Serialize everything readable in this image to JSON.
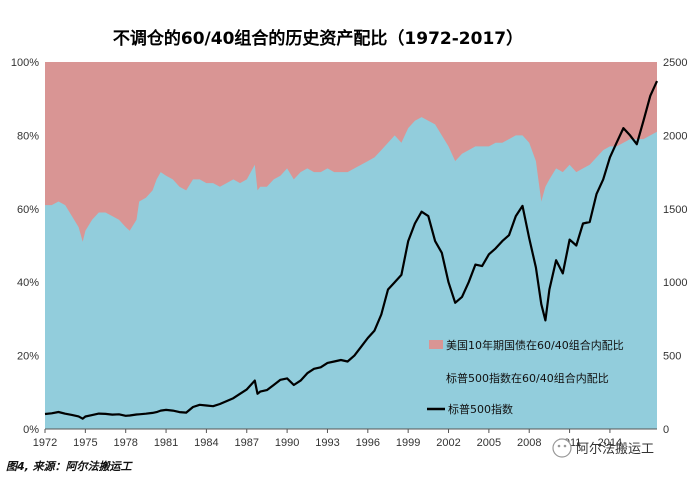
{
  "chart_data": {
    "type": "area",
    "title": "不调仓的60/40组合的历史资产配比（1972-2017）",
    "x_ticks": [
      "1972",
      "1975",
      "1978",
      "1981",
      "1984",
      "1987",
      "1990",
      "1993",
      "1996",
      "1999",
      "2002",
      "2005",
      "2008",
      "2011",
      "2014"
    ],
    "xlim": [
      1972,
      2017.5
    ],
    "y_left": {
      "ticks": [
        "0%",
        "20%",
        "40%",
        "60%",
        "80%",
        "100%"
      ],
      "ylim": [
        0,
        100
      ]
    },
    "y_right": {
      "ticks": [
        "0",
        "500",
        "1000",
        "1500",
        "2000",
        "2500"
      ],
      "ylim": [
        0,
        2500
      ]
    },
    "grid": false,
    "legend_position": "bottom-right",
    "colors": {
      "bond": "#d99594",
      "equity": "#92cddc",
      "sp500": "#000000"
    },
    "series": [
      {
        "name": "美国10年期国债在60/40组合内配比",
        "kind": "area-top",
        "note_values": "remainder to 100%"
      },
      {
        "name": "标普500指数在60/40组合内配比",
        "kind": "area",
        "axis": "left",
        "x": [
          1972,
          1972.5,
          1973,
          1973.5,
          1974,
          1974.5,
          1974.8,
          1975,
          1975.5,
          1976,
          1976.5,
          1977,
          1977.5,
          1978,
          1978.3,
          1978.8,
          1979,
          1979.5,
          1980,
          1980.3,
          1980.6,
          1981,
          1981.5,
          1982,
          1982.5,
          1983,
          1983.5,
          1984,
          1984.5,
          1985,
          1985.5,
          1986,
          1986.5,
          1987,
          1987.6,
          1987.8,
          1988,
          1988.5,
          1989,
          1989.5,
          1990,
          1990.5,
          1991,
          1991.5,
          1992,
          1992.5,
          1993,
          1993.5,
          1994,
          1994.5,
          1995,
          1995.5,
          1996,
          1996.5,
          1997,
          1997.5,
          1998,
          1998.5,
          1999,
          1999.5,
          2000,
          2000.5,
          2001,
          2001.5,
          2002,
          2002.5,
          2003,
          2003.5,
          2004,
          2004.5,
          2005,
          2005.5,
          2006,
          2006.5,
          2007,
          2007.5,
          2008,
          2008.5,
          2008.9,
          2009.2,
          2009.5,
          2010,
          2010.5,
          2011,
          2011.5,
          2012,
          2012.5,
          2013,
          2013.5,
          2014,
          2014.5,
          2015,
          2015.5,
          2016,
          2016.5,
          2017,
          2017.5
        ],
        "values": [
          61,
          61,
          62,
          61,
          58,
          55,
          51,
          54,
          57,
          59,
          59,
          58,
          57,
          55,
          54,
          57,
          62,
          63,
          65,
          68,
          70,
          69,
          68,
          66,
          65,
          68,
          68,
          67,
          67,
          66,
          67,
          68,
          67,
          68,
          72,
          65,
          66,
          66,
          68,
          69,
          71,
          68,
          70,
          71,
          70,
          70,
          71,
          70,
          70,
          70,
          71,
          72,
          73,
          74,
          76,
          78,
          80,
          78,
          82,
          84,
          85,
          84,
          83,
          80,
          77,
          73,
          75,
          76,
          77,
          77,
          77,
          78,
          78,
          79,
          80,
          80,
          78,
          73,
          62,
          66,
          68,
          71,
          70,
          72,
          70,
          71,
          72,
          74,
          76,
          77,
          77,
          78,
          79,
          79,
          79,
          80,
          81
        ]
      },
      {
        "name": "标普500指数",
        "kind": "line",
        "axis": "right",
        "x": [
          1972,
          1972.5,
          1973,
          1973.5,
          1974,
          1974.5,
          1974.8,
          1975,
          1975.5,
          1976,
          1976.5,
          1977,
          1977.5,
          1978,
          1978.3,
          1978.8,
          1979,
          1979.5,
          1980,
          1980.3,
          1980.6,
          1981,
          1981.5,
          1982,
          1982.5,
          1983,
          1983.5,
          1984,
          1984.5,
          1985,
          1985.5,
          1986,
          1986.5,
          1987,
          1987.6,
          1987.8,
          1988,
          1988.5,
          1989,
          1989.5,
          1990,
          1990.5,
          1991,
          1991.5,
          1992,
          1992.5,
          1993,
          1993.5,
          1994,
          1994.5,
          1995,
          1995.5,
          1996,
          1996.5,
          1997,
          1997.5,
          1998,
          1998.5,
          1999,
          1999.5,
          2000,
          2000.5,
          2001,
          2001.5,
          2002,
          2002.5,
          2003,
          2003.5,
          2004,
          2004.5,
          2005,
          2005.5,
          2006,
          2006.5,
          2007,
          2007.5,
          2008,
          2008.5,
          2008.9,
          2009.2,
          2009.5,
          2010,
          2010.5,
          2011,
          2011.5,
          2012,
          2012.5,
          2013,
          2013.5,
          2014,
          2014.5,
          2015,
          2015.5,
          2016,
          2016.5,
          2017,
          2017.5
        ],
        "values": [
          102,
          107,
          116,
          104,
          96,
          86,
          70,
          85,
          95,
          105,
          103,
          98,
          100,
          90,
          92,
          99,
          100,
          104,
          110,
          115,
          125,
          130,
          125,
          115,
          112,
          150,
          165,
          160,
          155,
          170,
          190,
          210,
          240,
          270,
          330,
          240,
          255,
          265,
          300,
          335,
          345,
          300,
          330,
          380,
          410,
          420,
          450,
          460,
          470,
          460,
          500,
          560,
          620,
          670,
          780,
          950,
          1000,
          1050,
          1280,
          1400,
          1480,
          1450,
          1280,
          1200,
          1000,
          860,
          900,
          1000,
          1120,
          1110,
          1190,
          1230,
          1280,
          1320,
          1450,
          1520,
          1300,
          1100,
          850,
          740,
          950,
          1150,
          1060,
          1290,
          1250,
          1400,
          1410,
          1600,
          1700,
          1850,
          1950,
          2050,
          2000,
          1940,
          2100,
          2270,
          2370
        ]
      }
    ]
  },
  "legend": {
    "bond": "美国10年期国债在60/40组合内配比",
    "equity": "标普500指数在60/40组合内配比",
    "sp500": "标普500指数"
  },
  "caption": "图4, 来源：阿尔法搬运工",
  "watermark": "阿尔法搬运工"
}
